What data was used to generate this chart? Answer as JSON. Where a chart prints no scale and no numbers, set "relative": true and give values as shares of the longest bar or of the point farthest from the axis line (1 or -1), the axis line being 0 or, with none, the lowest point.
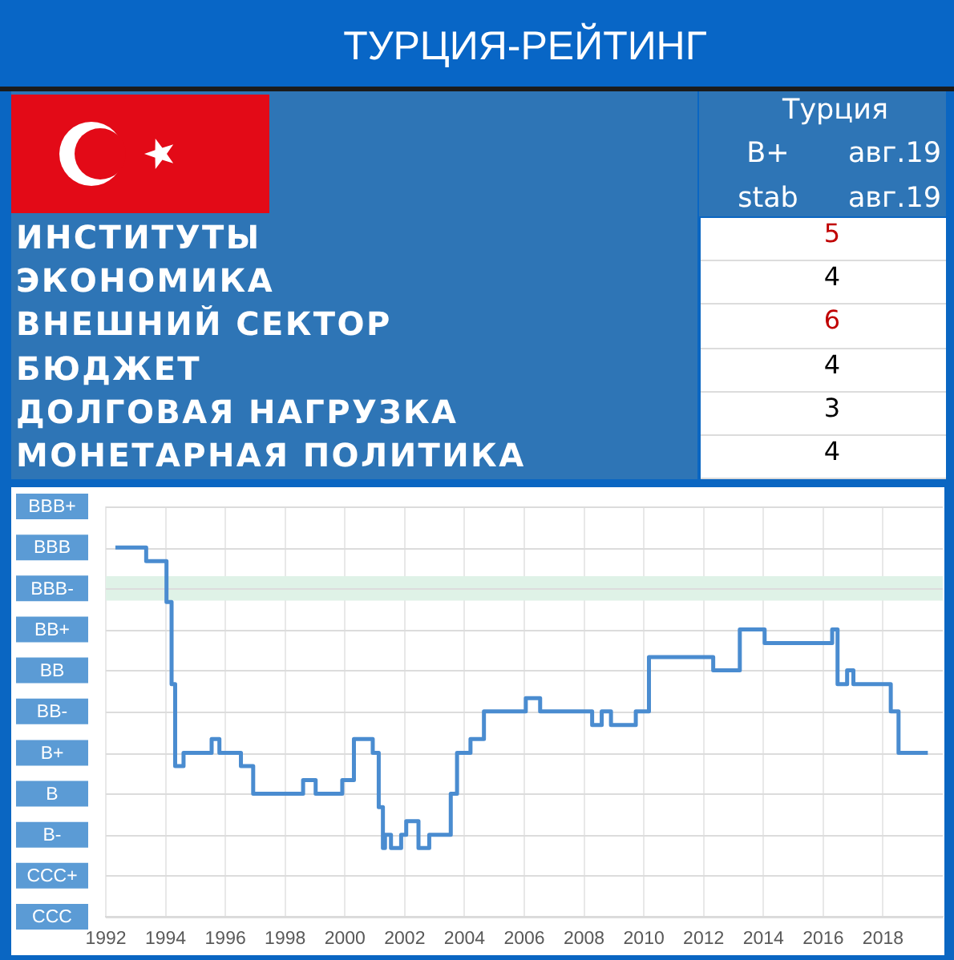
{
  "chart_data": [
    {
      "type": "other",
      "title": "ТУРЦИЯ-РЕЙТИНГ",
      "categories": [
        "ИНСТИТУТЫ",
        "ЭКОНОМИКА",
        "ВНЕШНИЙ СЕКТОР",
        "БЮДЖЕТ",
        "ДОЛГОВАЯ НАГРУЗКА",
        "МОНЕТАРНАЯ ПОЛИТИКА"
      ],
      "series": [
        {
          "name": "Турция",
          "values": [
            5,
            4,
            6,
            4,
            3,
            4
          ],
          "colors": [
            "#c00000",
            "#000000",
            "#c00000",
            "#000000",
            "#000000",
            "#000000"
          ]
        }
      ],
      "annotations": [
        "B+",
        "авг.19",
        "stab",
        "авг.19"
      ],
      "data_labels": true
    },
    {
      "type": "step",
      "relative": true,
      "color": "#4a8cd0",
      "x": [
        1992.32,
        1993.35,
        1994.03,
        1994.2,
        1994.32,
        1994.6,
        1995.54,
        1995.8,
        1996.52,
        1996.93,
        1998.6,
        1999.02,
        1999.91,
        2000.3,
        2000.93,
        2001.13,
        2001.27,
        2001.34,
        2001.54,
        2001.88,
        2002.05,
        2002.46,
        2002.82,
        2003.54,
        2003.75,
        2004.2,
        2004.65,
        2006.05,
        2006.53,
        2008.27,
        2008.59,
        2008.9,
        2009.73,
        2010.17,
        2012.32,
        2013.21,
        2014.04,
        2016.3,
        2016.48,
        2016.8,
        2017.01,
        2018.26,
        2018.52,
        2019.5
      ],
      "values": [
        1,
        0.963,
        0.852,
        0.63,
        0.408,
        0.444,
        0.481,
        0.444,
        0.408,
        0.333,
        0.37,
        0.333,
        0.37,
        0.481,
        0.444,
        0.297,
        0.186,
        0.222,
        0.186,
        0.222,
        0.259,
        0.186,
        0.222,
        0.333,
        0.444,
        0.481,
        0.556,
        0.592,
        0.556,
        0.519,
        0.556,
        0.519,
        0.556,
        0.703,
        0.667,
        0.778,
        0.741,
        0.778,
        0.63,
        0.667,
        0.63,
        0.556,
        0.444,
        0.444
      ],
      "xlim": [
        1992,
        2020
      ],
      "xticks": [
        1992,
        1994,
        1996,
        1998,
        2000,
        2002,
        2004,
        2006,
        2008,
        2010,
        2012,
        2014,
        2016,
        2018
      ],
      "grid": "x",
      "ref_lines": [
        {
          "axis": "y",
          "value": 0,
          "label": "CCC"
        },
        {
          "axis": "y",
          "value": 0.111,
          "label": "CCC+"
        },
        {
          "axis": "y",
          "value": 0.222,
          "label": "B-"
        },
        {
          "axis": "y",
          "value": 0.333,
          "label": "B"
        },
        {
          "axis": "y",
          "value": 0.444,
          "label": "B+"
        },
        {
          "axis": "y",
          "value": 0.556,
          "label": "BB-"
        },
        {
          "axis": "y",
          "value": 0.667,
          "label": "BB"
        },
        {
          "axis": "y",
          "value": 0.778,
          "label": "BB+"
        },
        {
          "axis": "y",
          "value": 0.889,
          "label": "BBB-"
        },
        {
          "axis": "y",
          "value": 1,
          "label": "BBB"
        },
        {
          "axis": "y",
          "value": 1.111,
          "label": "BBB+"
        }
      ],
      "bands": [
        {
          "axis": "y",
          "from": 0.856,
          "to": 0.922,
          "color": "#dff2e7"
        }
      ]
    }
  ]
}
